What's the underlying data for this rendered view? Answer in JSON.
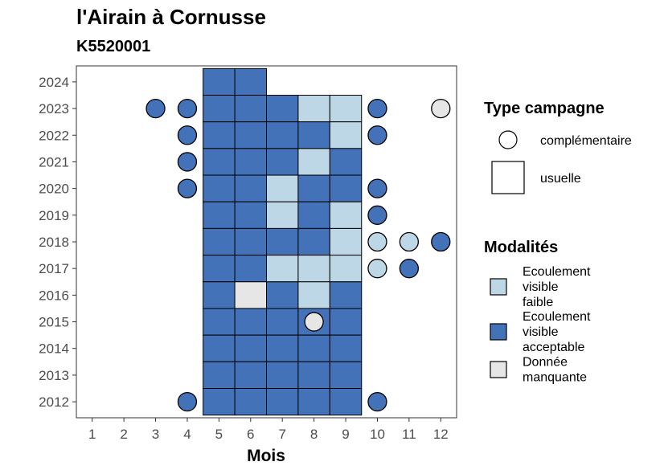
{
  "chart_data": {
    "type": "heatmap",
    "title": "l'Airain à Cornusse",
    "subtitle": "K5520001",
    "xlabel": "Mois",
    "ylabel": "",
    "x_ticks": [
      1,
      2,
      3,
      4,
      5,
      6,
      7,
      8,
      9,
      10,
      11,
      12
    ],
    "y_ticks": [
      2012,
      2013,
      2014,
      2015,
      2016,
      2017,
      2018,
      2019,
      2020,
      2021,
      2022,
      2023,
      2024
    ],
    "xlim": [
      0.5,
      12.5
    ],
    "ylim": [
      2011.4,
      2024.6
    ],
    "colors": {
      "faible": "#bdd7e7",
      "acceptable": "#4372b8",
      "manquante": "#e6e6e6"
    },
    "legend_type": {
      "title": "Type campagne",
      "items": [
        {
          "label": "complémentaire",
          "shape": "circle"
        },
        {
          "label": "usuelle",
          "shape": "square"
        }
      ]
    },
    "legend_mod": {
      "title": "Modalités",
      "items": [
        {
          "key": "faible",
          "lines": [
            "Ecoulement",
            "visible",
            "faible"
          ]
        },
        {
          "key": "acceptable",
          "lines": [
            "Ecoulement",
            "visible",
            "acceptable"
          ]
        },
        {
          "key": "manquante",
          "lines": [
            "Donnée",
            "manquante"
          ]
        }
      ]
    },
    "usuelle": [
      {
        "year": 2024,
        "month": 5,
        "mod": "acceptable"
      },
      {
        "year": 2024,
        "month": 6,
        "mod": "acceptable"
      },
      {
        "year": 2023,
        "month": 5,
        "mod": "acceptable"
      },
      {
        "year": 2023,
        "month": 6,
        "mod": "acceptable"
      },
      {
        "year": 2023,
        "month": 7,
        "mod": "acceptable"
      },
      {
        "year": 2023,
        "month": 8,
        "mod": "faible"
      },
      {
        "year": 2023,
        "month": 9,
        "mod": "faible"
      },
      {
        "year": 2022,
        "month": 5,
        "mod": "acceptable"
      },
      {
        "year": 2022,
        "month": 6,
        "mod": "acceptable"
      },
      {
        "year": 2022,
        "month": 7,
        "mod": "acceptable"
      },
      {
        "year": 2022,
        "month": 8,
        "mod": "acceptable"
      },
      {
        "year": 2022,
        "month": 9,
        "mod": "faible"
      },
      {
        "year": 2021,
        "month": 5,
        "mod": "acceptable"
      },
      {
        "year": 2021,
        "month": 6,
        "mod": "acceptable"
      },
      {
        "year": 2021,
        "month": 7,
        "mod": "acceptable"
      },
      {
        "year": 2021,
        "month": 8,
        "mod": "faible"
      },
      {
        "year": 2021,
        "month": 9,
        "mod": "acceptable"
      },
      {
        "year": 2020,
        "month": 5,
        "mod": "acceptable"
      },
      {
        "year": 2020,
        "month": 6,
        "mod": "acceptable"
      },
      {
        "year": 2020,
        "month": 7,
        "mod": "faible"
      },
      {
        "year": 2020,
        "month": 8,
        "mod": "acceptable"
      },
      {
        "year": 2020,
        "month": 9,
        "mod": "acceptable"
      },
      {
        "year": 2019,
        "month": 5,
        "mod": "acceptable"
      },
      {
        "year": 2019,
        "month": 6,
        "mod": "acceptable"
      },
      {
        "year": 2019,
        "month": 7,
        "mod": "faible"
      },
      {
        "year": 2019,
        "month": 8,
        "mod": "acceptable"
      },
      {
        "year": 2019,
        "month": 9,
        "mod": "faible"
      },
      {
        "year": 2018,
        "month": 5,
        "mod": "acceptable"
      },
      {
        "year": 2018,
        "month": 6,
        "mod": "acceptable"
      },
      {
        "year": 2018,
        "month": 7,
        "mod": "acceptable"
      },
      {
        "year": 2018,
        "month": 8,
        "mod": "acceptable"
      },
      {
        "year": 2018,
        "month": 9,
        "mod": "faible"
      },
      {
        "year": 2017,
        "month": 5,
        "mod": "acceptable"
      },
      {
        "year": 2017,
        "month": 6,
        "mod": "acceptable"
      },
      {
        "year": 2017,
        "month": 7,
        "mod": "faible"
      },
      {
        "year": 2017,
        "month": 8,
        "mod": "faible"
      },
      {
        "year": 2017,
        "month": 9,
        "mod": "faible"
      },
      {
        "year": 2016,
        "month": 5,
        "mod": "acceptable"
      },
      {
        "year": 2016,
        "month": 6,
        "mod": "manquante"
      },
      {
        "year": 2016,
        "month": 7,
        "mod": "acceptable"
      },
      {
        "year": 2016,
        "month": 8,
        "mod": "faible"
      },
      {
        "year": 2016,
        "month": 9,
        "mod": "acceptable"
      },
      {
        "year": 2015,
        "month": 5,
        "mod": "acceptable"
      },
      {
        "year": 2015,
        "month": 6,
        "mod": "acceptable"
      },
      {
        "year": 2015,
        "month": 7,
        "mod": "acceptable"
      },
      {
        "year": 2015,
        "month": 8,
        "mod": "acceptable"
      },
      {
        "year": 2015,
        "month": 9,
        "mod": "acceptable"
      },
      {
        "year": 2014,
        "month": 5,
        "mod": "acceptable"
      },
      {
        "year": 2014,
        "month": 6,
        "mod": "acceptable"
      },
      {
        "year": 2014,
        "month": 7,
        "mod": "acceptable"
      },
      {
        "year": 2014,
        "month": 8,
        "mod": "acceptable"
      },
      {
        "year": 2014,
        "month": 9,
        "mod": "acceptable"
      },
      {
        "year": 2013,
        "month": 5,
        "mod": "acceptable"
      },
      {
        "year": 2013,
        "month": 6,
        "mod": "acceptable"
      },
      {
        "year": 2013,
        "month": 7,
        "mod": "acceptable"
      },
      {
        "year": 2013,
        "month": 8,
        "mod": "acceptable"
      },
      {
        "year": 2013,
        "month": 9,
        "mod": "acceptable"
      },
      {
        "year": 2012,
        "month": 5,
        "mod": "acceptable"
      },
      {
        "year": 2012,
        "month": 6,
        "mod": "acceptable"
      },
      {
        "year": 2012,
        "month": 7,
        "mod": "acceptable"
      },
      {
        "year": 2012,
        "month": 8,
        "mod": "acceptable"
      },
      {
        "year": 2012,
        "month": 9,
        "mod": "acceptable"
      }
    ],
    "complementaire": [
      {
        "year": 2023,
        "month": 3,
        "mod": "acceptable"
      },
      {
        "year": 2023,
        "month": 4,
        "mod": "acceptable"
      },
      {
        "year": 2023,
        "month": 10,
        "mod": "acceptable"
      },
      {
        "year": 2023,
        "month": 12,
        "mod": "manquante"
      },
      {
        "year": 2022,
        "month": 4,
        "mod": "acceptable"
      },
      {
        "year": 2022,
        "month": 10,
        "mod": "acceptable"
      },
      {
        "year": 2021,
        "month": 4,
        "mod": "acceptable"
      },
      {
        "year": 2020,
        "month": 4,
        "mod": "acceptable"
      },
      {
        "year": 2020,
        "month": 10,
        "mod": "acceptable"
      },
      {
        "year": 2019,
        "month": 10,
        "mod": "acceptable"
      },
      {
        "year": 2018,
        "month": 10,
        "mod": "faible"
      },
      {
        "year": 2018,
        "month": 11,
        "mod": "faible"
      },
      {
        "year": 2018,
        "month": 12,
        "mod": "acceptable"
      },
      {
        "year": 2017,
        "month": 10,
        "mod": "faible"
      },
      {
        "year": 2017,
        "month": 11,
        "mod": "acceptable"
      },
      {
        "year": 2015,
        "month": 8,
        "mod": "manquante"
      },
      {
        "year": 2012,
        "month": 4,
        "mod": "acceptable"
      },
      {
        "year": 2012,
        "month": 10,
        "mod": "acceptable"
      }
    ]
  }
}
